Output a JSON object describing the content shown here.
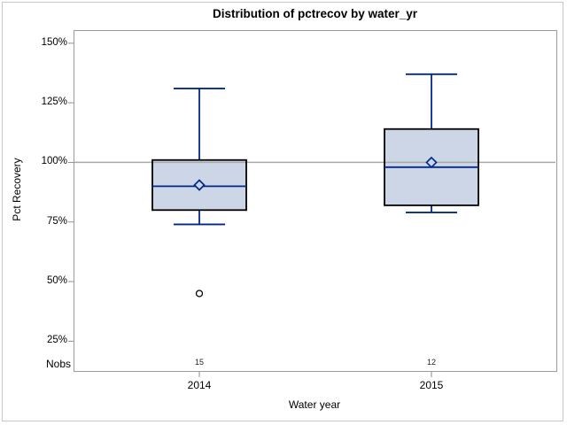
{
  "figure": {
    "title": "Distribution of pctrecov by water_yr",
    "y_axis_title": "Pct Recovery",
    "x_axis_title": "Water year",
    "nobs_row_label": "Nobs"
  },
  "colors": {
    "background": "#ffffff",
    "figure_border": "#c6c9cc",
    "axis_border": "#969ba1",
    "tick_mark": "#8a9097",
    "reference_line": "#a9a9a9",
    "box_fill": "#ccd6e6",
    "box_border": "#000000",
    "whisker_line": "#00298a",
    "median_line": "#00298a",
    "mean_marker": "#00298a",
    "outlier_marker": "#000000",
    "text": "#000000",
    "nobs_text": "#222222"
  },
  "chart_data": {
    "type": "boxplot",
    "title": "Distribution of pctrecov by water_yr",
    "xlabel": "Water year",
    "ylabel": "Pct Recovery",
    "ylim": [
      12.5,
      155.5
    ],
    "ytick_values": [
      25,
      50,
      75,
      100,
      125,
      150
    ],
    "ytick_labels": [
      "25%",
      "50%",
      "75%",
      "100%",
      "125%",
      "150%"
    ],
    "reference_line_y": 100,
    "grid": false,
    "legend": "none",
    "nobs_row_label": "Nobs",
    "groups": [
      {
        "label": "2014",
        "nobs": 15,
        "whisker_low": 74,
        "q1": 80,
        "median": 90,
        "mean": 90.5,
        "q3": 101,
        "whisker_high": 131,
        "outliers": [
          45
        ]
      },
      {
        "label": "2015",
        "nobs": 12,
        "whisker_low": 79,
        "q1": 82,
        "median": 98,
        "mean": 100,
        "q3": 114,
        "whisker_high": 137,
        "outliers": []
      }
    ]
  }
}
